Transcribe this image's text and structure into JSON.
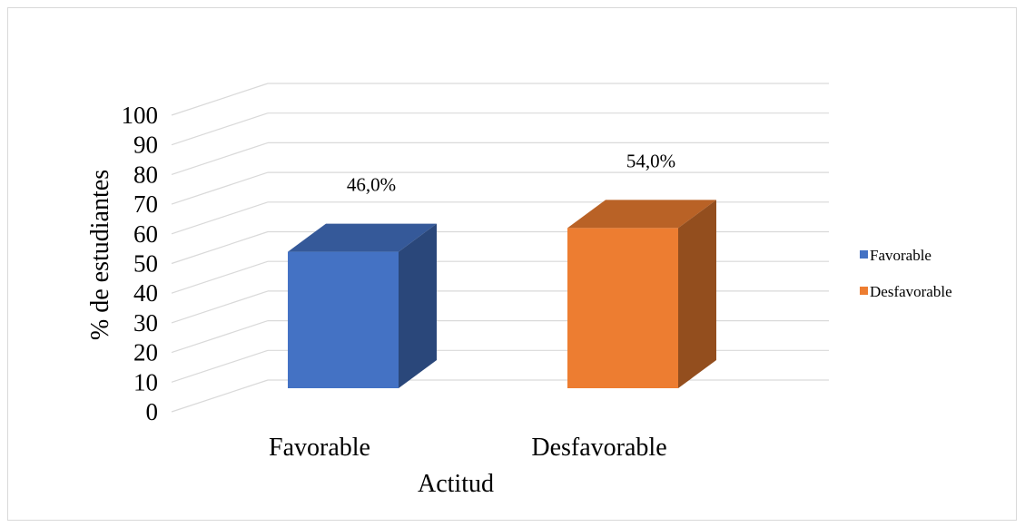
{
  "chart_data": {
    "type": "bar",
    "categories": [
      "Favorable",
      "Desfavorable"
    ],
    "series": [
      {
        "name": "Favorable",
        "values": [
          46.0,
          null
        ]
      },
      {
        "name": "Desfavorable",
        "values": [
          null,
          54.0
        ]
      }
    ],
    "values": [
      46.0,
      54.0
    ],
    "data_labels": [
      "46,0%",
      "54,0%"
    ],
    "title": "",
    "xlabel": "Actitud",
    "ylabel": "% de  estudiantes",
    "ylim": [
      0,
      100
    ],
    "y_ticks": [
      "0",
      "10",
      "20",
      "30",
      "40",
      "50",
      "60",
      "70",
      "80",
      "90",
      "100"
    ],
    "grid": true,
    "three_d": true,
    "legend": {
      "position": "right",
      "entries": [
        "Favorable",
        "Desfavorable"
      ]
    },
    "colors": {
      "Favorable": "#4472c4",
      "Desfavorable": "#ed7d31",
      "gridline": "#d9d9d9"
    }
  }
}
